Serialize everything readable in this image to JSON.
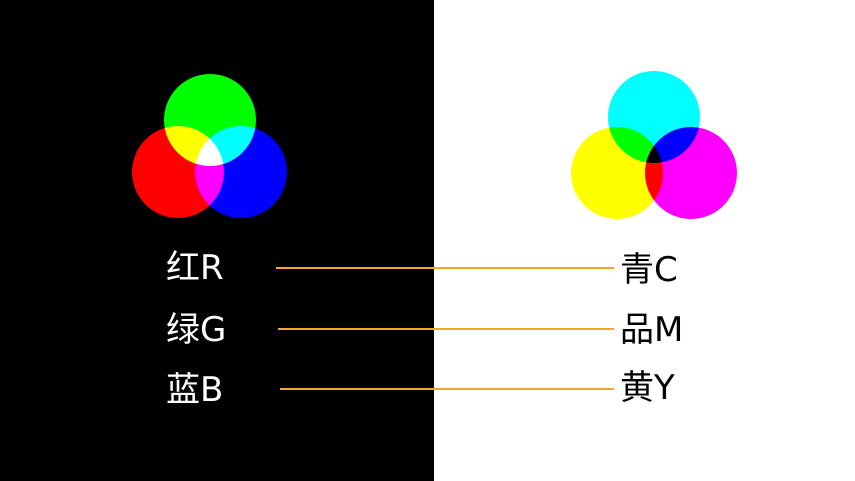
{
  "additive": {
    "red_label": "红R",
    "green_label": "绿G",
    "blue_label": "蓝B",
    "colors": {
      "background": "#000000",
      "red": "#ff0000",
      "green": "#00ff00",
      "blue": "#0000ff",
      "text": "#ffffff"
    }
  },
  "subtractive": {
    "cyan_label": "青C",
    "magenta_label": "品M",
    "yellow_label": "黄Y",
    "colors": {
      "background": "#ffffff",
      "cyan": "#00ffff",
      "magenta": "#ff00ff",
      "yellow": "#ffff00",
      "text": "#000000"
    }
  },
  "connector_color": "#f5a623"
}
